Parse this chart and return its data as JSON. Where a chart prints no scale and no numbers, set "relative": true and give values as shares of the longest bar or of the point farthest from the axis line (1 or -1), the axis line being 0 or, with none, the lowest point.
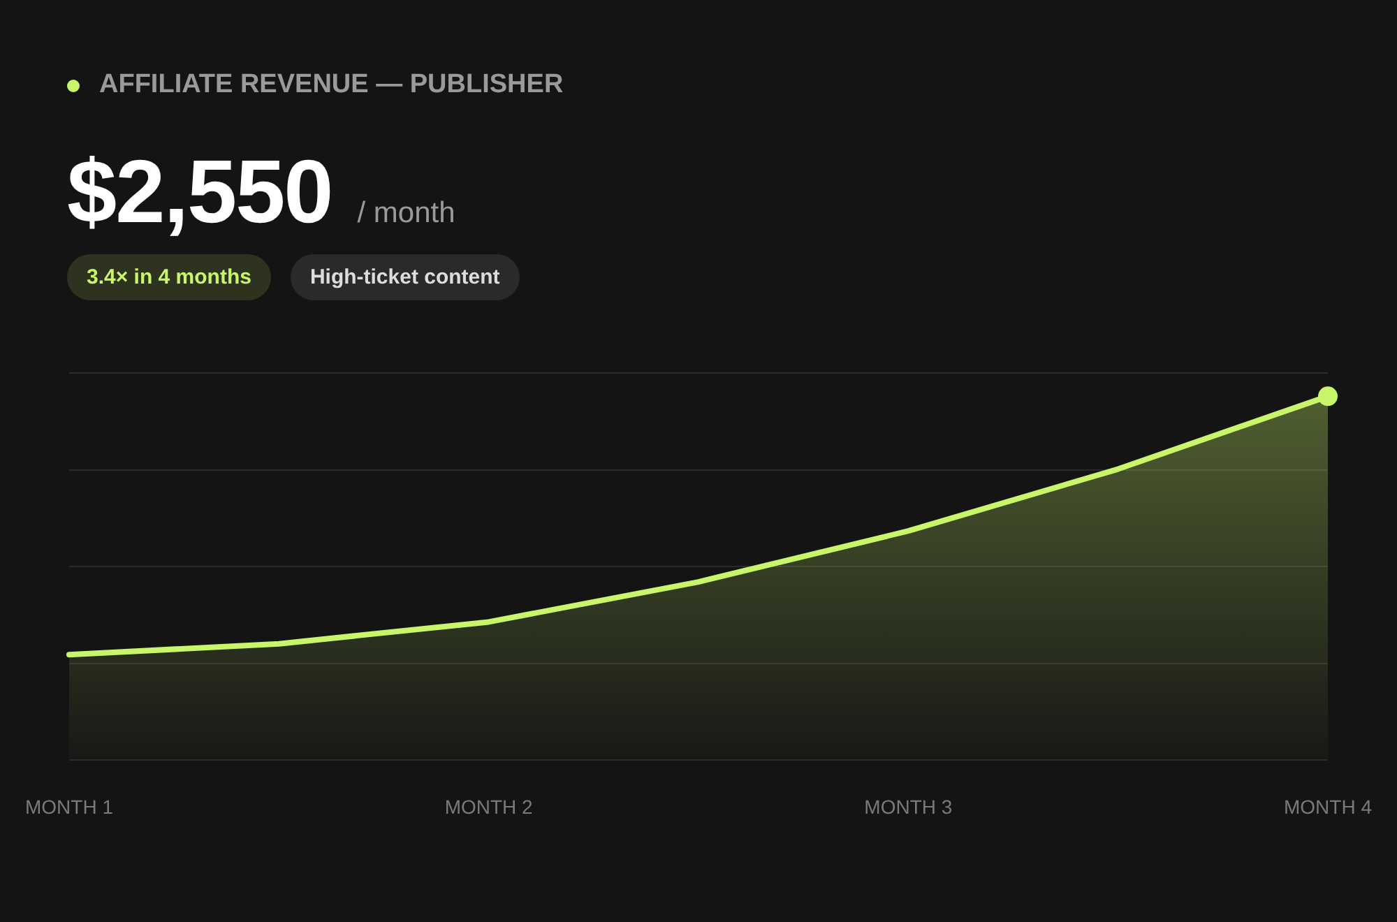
{
  "chart_data": {
    "type": "area",
    "title": "AFFILIATE REVENUE — PUBLISHER",
    "annotations": [
      "$2,550",
      "/ month",
      "3.4× in 4 months",
      "High-ticket content"
    ],
    "categories": [
      "MONTH 1",
      null,
      "MONTH 2",
      null,
      "MONTH 3",
      null,
      "MONTH 4"
    ],
    "series": [
      {
        "color": "#c8f56a",
        "values": [
          0.29,
          0.32,
          0.38,
          0.49,
          0.63,
          0.8,
          1
        ]
      }
    ],
    "relative": true,
    "grid": "y",
    "legend": false
  }
}
